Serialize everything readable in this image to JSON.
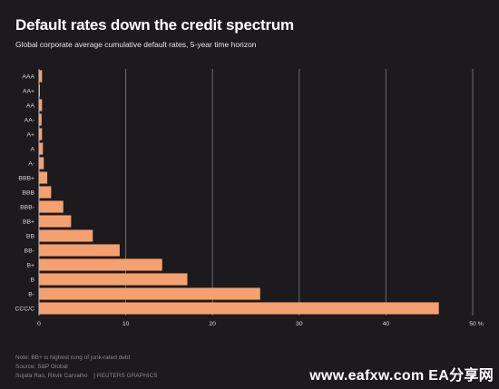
{
  "header": {
    "title": "Default rates down the credit spectrum",
    "subtitle": "Global corporate average cumulative default rates, 5-year time horizon"
  },
  "footer": {
    "note": "Note: BB+ is highest rung of junk-rated debt",
    "source": "Source: S&P Global",
    "credit": "Sujata Rao, Ritvik Carvalho",
    "agency": "| REUTERS GRAPHICS"
  },
  "watermark": "www.eafxw.com   EA分享网",
  "colors": {
    "bar": "#f5a06f",
    "grid": "#6e6c70",
    "background": "#1c1a1d"
  },
  "chart_data": {
    "type": "bar",
    "orientation": "horizontal",
    "categories": [
      "AAA",
      "AA+",
      "AA",
      "AA-",
      "A+",
      "A",
      "A-",
      "BBB+",
      "BBB",
      "BBB-",
      "BB+",
      "BB",
      "BB-",
      "B+",
      "B",
      "B-",
      "CCC/C"
    ],
    "values": [
      0.35,
      0.1,
      0.35,
      0.3,
      0.35,
      0.45,
      0.55,
      0.95,
      1.4,
      2.8,
      3.7,
      6.2,
      9.3,
      14.2,
      17.1,
      25.5,
      46.1
    ],
    "xlim": [
      0,
      50
    ],
    "xticks": [
      "0",
      "10",
      "20",
      "30",
      "40",
      "50 %"
    ],
    "xtick_values": [
      0,
      10,
      20,
      30,
      40,
      50
    ],
    "grid": true,
    "title": "Default rates down the credit spectrum",
    "subtitle": "Global corporate average cumulative default rates, 5-year time horizon"
  }
}
